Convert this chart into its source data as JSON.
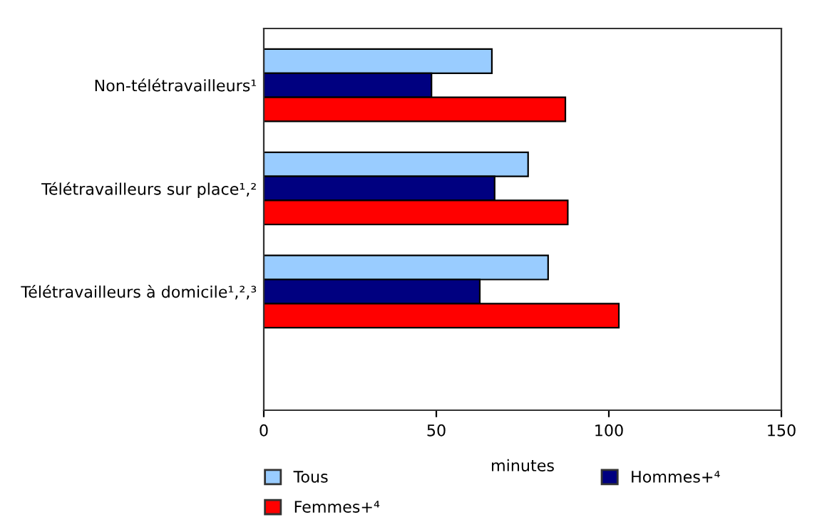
{
  "chart_data": {
    "type": "bar",
    "orientation": "horizontal",
    "xlabel": "minutes",
    "categories": [
      "Non-télétravailleurs¹",
      "Télétravailleurs sur place¹,²",
      "Télétravailleurs à domicile¹,²,³"
    ],
    "series": [
      {
        "name": "Tous",
        "color": "#99ccff",
        "values": [
          66.1,
          76.6,
          82.4
        ]
      },
      {
        "name": "Hommes+⁴",
        "color": "#000080",
        "values": [
          48.6,
          66.9,
          62.6
        ]
      },
      {
        "name": "Femmes+⁴",
        "color": "#ff0000",
        "values": [
          87.4,
          88.1,
          102.9
        ]
      }
    ],
    "xlim": [
      0,
      150
    ],
    "xticks": [
      0,
      50,
      100,
      150
    ],
    "grid": false,
    "legend": "bottom"
  }
}
